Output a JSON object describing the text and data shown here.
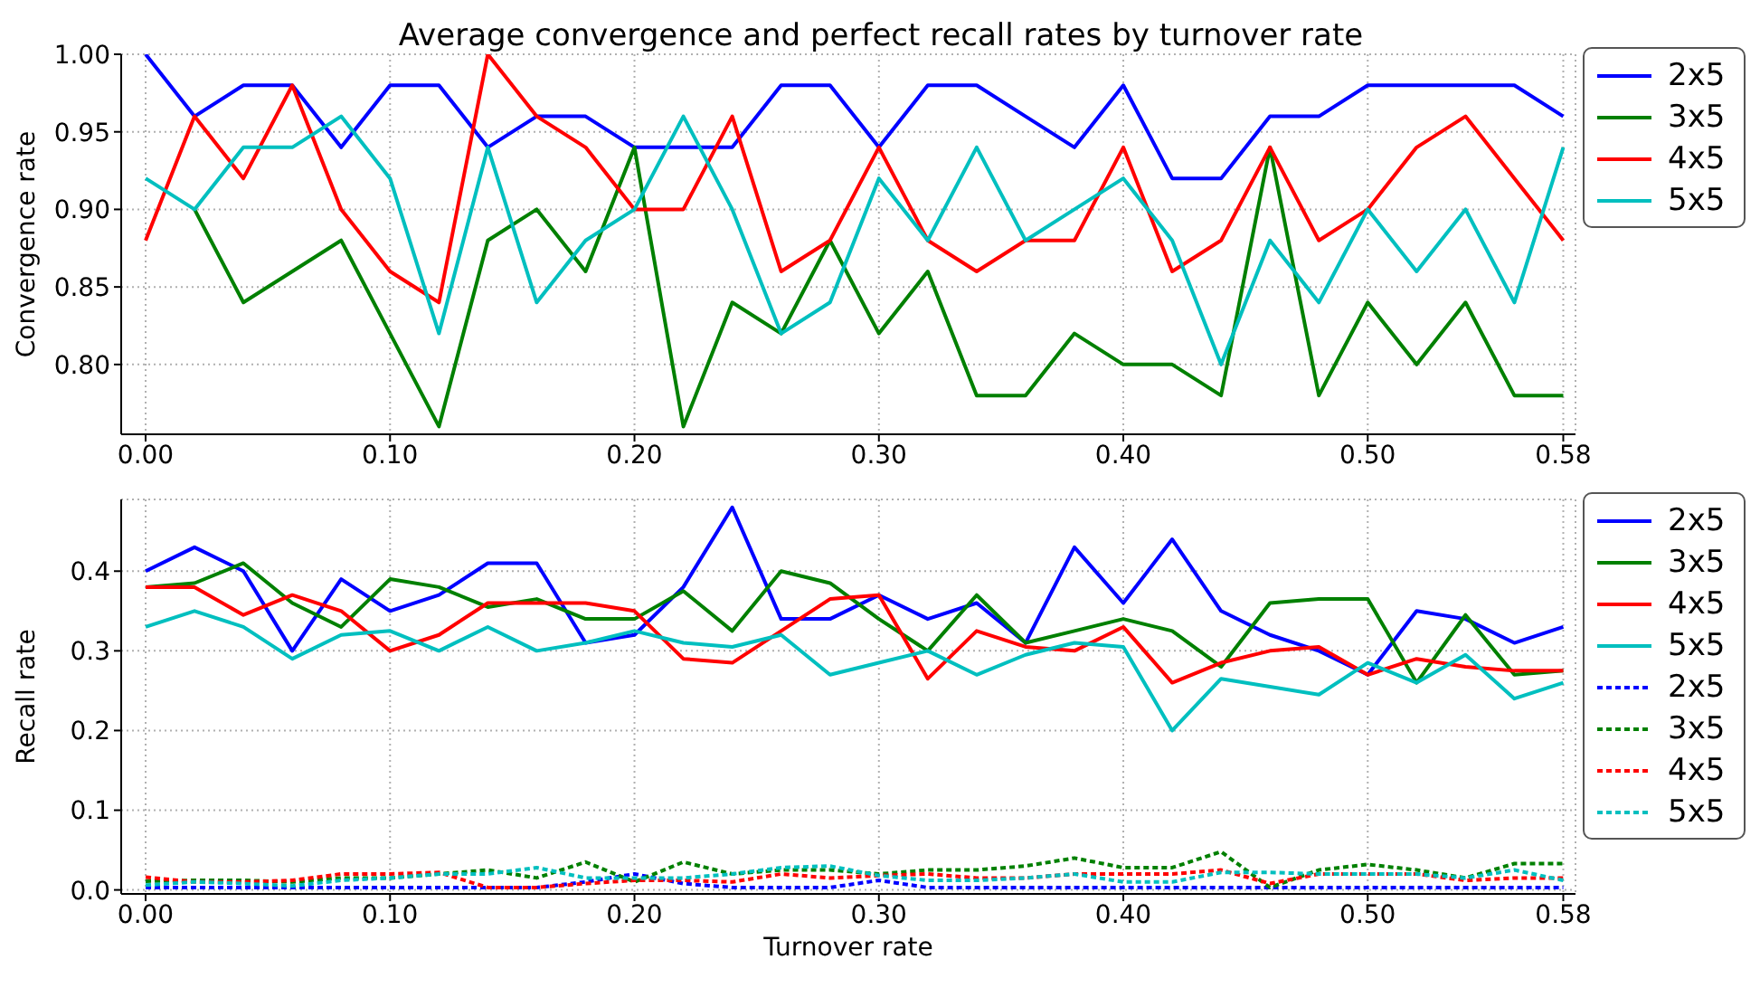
{
  "chart_data": [
    {
      "type": "line",
      "title": "Average convergence and perfect recall rates by turnover rate",
      "ylabel": "Convergence rate",
      "x": [
        0,
        0.02,
        0.04,
        0.06,
        0.08,
        0.1,
        0.12,
        0.14,
        0.16,
        0.18,
        0.2,
        0.22,
        0.24,
        0.26,
        0.28,
        0.3,
        0.32,
        0.34,
        0.36,
        0.38,
        0.4,
        0.42,
        0.44,
        0.46,
        0.48,
        0.5,
        0.52,
        0.54,
        0.56,
        0.58
      ],
      "xlim": [
        -0.01,
        0.585
      ],
      "xticks": [
        {
          "value": 0,
          "label": "0.00"
        },
        {
          "value": 0.1,
          "label": "0.10"
        },
        {
          "value": 0.2,
          "label": "0.20"
        },
        {
          "value": 0.3,
          "label": "0.30"
        },
        {
          "value": 0.4,
          "label": "0.40"
        },
        {
          "value": 0.5,
          "label": "0.50"
        },
        {
          "value": 0.58,
          "label": "0.58"
        }
      ],
      "ylim": [
        0.755,
        1.0
      ],
      "yticks": [
        {
          "value": 0.8,
          "label": "0.80"
        },
        {
          "value": 0.85,
          "label": "0.85"
        },
        {
          "value": 0.9,
          "label": "0.90"
        },
        {
          "value": 0.95,
          "label": "0.95"
        },
        {
          "value": 1.0,
          "label": "1.00"
        }
      ],
      "grid": true,
      "legend": "right",
      "marker": "none",
      "line_style": "solid",
      "series": [
        {
          "name": "2x5",
          "color": "#0000ff",
          "values": [
            1.0,
            0.96,
            0.98,
            0.98,
            0.94,
            0.98,
            0.98,
            0.94,
            0.96,
            0.96,
            0.94,
            0.94,
            0.94,
            0.98,
            0.98,
            0.94,
            0.98,
            0.98,
            0.96,
            0.94,
            0.98,
            0.92,
            0.92,
            0.96,
            0.96,
            0.98,
            0.98,
            0.98,
            0.98,
            0.96
          ]
        },
        {
          "name": "3x5",
          "color": "#008000",
          "values": [
            null,
            0.9,
            0.84,
            0.86,
            0.88,
            0.82,
            0.76,
            0.88,
            0.9,
            0.86,
            0.94,
            0.76,
            0.84,
            0.82,
            0.88,
            0.82,
            0.86,
            0.78,
            0.78,
            0.82,
            0.8,
            0.8,
            0.78,
            0.94,
            0.78,
            0.84,
            0.8,
            0.84,
            0.78,
            0.78
          ]
        },
        {
          "name": "4x5",
          "color": "#ff0000",
          "values": [
            0.88,
            0.96,
            0.92,
            0.98,
            0.9,
            0.86,
            0.84,
            1.0,
            0.96,
            0.94,
            0.9,
            0.9,
            0.96,
            0.86,
            0.88,
            0.94,
            0.88,
            0.86,
            0.88,
            0.88,
            0.94,
            0.86,
            0.88,
            0.94,
            0.88,
            0.9,
            0.94,
            0.96,
            0.92,
            0.88
          ]
        },
        {
          "name": "5x5",
          "color": "#00bfbf",
          "values": [
            0.92,
            0.9,
            0.94,
            0.94,
            0.96,
            0.92,
            0.82,
            0.94,
            0.84,
            0.88,
            0.9,
            0.96,
            0.9,
            0.82,
            0.84,
            0.92,
            0.88,
            0.94,
            0.88,
            0.9,
            0.92,
            0.88,
            0.8,
            0.88,
            0.84,
            0.9,
            0.86,
            0.9,
            0.84,
            0.94
          ]
        }
      ]
    },
    {
      "type": "line",
      "xlabel": "Turnover rate",
      "ylabel": "Recall rate",
      "x": [
        0,
        0.02,
        0.04,
        0.06,
        0.08,
        0.1,
        0.12,
        0.14,
        0.16,
        0.18,
        0.2,
        0.22,
        0.24,
        0.26,
        0.28,
        0.3,
        0.32,
        0.34,
        0.36,
        0.38,
        0.4,
        0.42,
        0.44,
        0.46,
        0.48,
        0.5,
        0.52,
        0.54,
        0.56,
        0.58
      ],
      "xlim": [
        -0.01,
        0.585
      ],
      "xticks": [
        {
          "value": 0,
          "label": "0.00"
        },
        {
          "value": 0.1,
          "label": "0.10"
        },
        {
          "value": 0.2,
          "label": "0.20"
        },
        {
          "value": 0.3,
          "label": "0.30"
        },
        {
          "value": 0.4,
          "label": "0.40"
        },
        {
          "value": 0.5,
          "label": "0.50"
        },
        {
          "value": 0.58,
          "label": "0.58"
        }
      ],
      "ylim": [
        -0.005,
        0.49
      ],
      "yticks": [
        {
          "value": 0,
          "label": "0.0"
        },
        {
          "value": 0.1,
          "label": "0.1"
        },
        {
          "value": 0.2,
          "label": "0.2"
        },
        {
          "value": 0.3,
          "label": "0.3"
        },
        {
          "value": 0.4,
          "label": "0.4"
        }
      ],
      "grid": true,
      "legend": "right",
      "marker": "none",
      "series": [
        {
          "name": "2x5",
          "color": "#0000ff",
          "line_style": "solid",
          "values": [
            0.4,
            0.43,
            0.4,
            0.3,
            0.39,
            0.35,
            0.37,
            0.41,
            0.41,
            0.31,
            0.32,
            0.38,
            0.48,
            0.34,
            0.34,
            0.37,
            0.34,
            0.36,
            0.31,
            0.43,
            0.36,
            0.44,
            0.35,
            0.32,
            0.3,
            0.27,
            0.35,
            0.34,
            0.31,
            0.33
          ]
        },
        {
          "name": "3x5",
          "color": "#008000",
          "line_style": "solid",
          "values": [
            0.38,
            0.385,
            0.41,
            0.36,
            0.33,
            0.39,
            0.38,
            0.355,
            0.365,
            0.34,
            0.34,
            0.375,
            0.325,
            0.4,
            0.385,
            0.34,
            0.3,
            0.37,
            0.31,
            0.325,
            0.34,
            0.325,
            0.28,
            0.36,
            0.365,
            0.365,
            0.26,
            0.345,
            0.27,
            0.275
          ]
        },
        {
          "name": "4x5",
          "color": "#ff0000",
          "line_style": "solid",
          "values": [
            0.38,
            0.38,
            0.345,
            0.37,
            0.35,
            0.3,
            0.32,
            0.36,
            0.36,
            0.36,
            0.35,
            0.29,
            0.285,
            0.325,
            0.365,
            0.37,
            0.265,
            0.325,
            0.305,
            0.3,
            0.33,
            0.26,
            0.285,
            0.3,
            0.305,
            0.27,
            0.29,
            0.28,
            0.275,
            0.275
          ]
        },
        {
          "name": "5x5",
          "color": "#00bfbf",
          "line_style": "solid",
          "values": [
            0.33,
            0.35,
            0.33,
            0.29,
            0.32,
            0.325,
            0.3,
            0.33,
            0.3,
            0.31,
            0.325,
            0.31,
            0.305,
            0.32,
            0.27,
            0.285,
            0.3,
            0.27,
            0.295,
            0.31,
            0.305,
            0.2,
            0.265,
            0.255,
            0.245,
            0.285,
            0.26,
            0.295,
            0.24,
            0.26
          ]
        },
        {
          "name": "2x5",
          "color": "#0000ff",
          "line_style": "dashed",
          "values": [
            0.003,
            0.003,
            0.003,
            0.003,
            0.003,
            0.003,
            0.003,
            0.003,
            0.003,
            0.01,
            0.02,
            0.008,
            0.003,
            0.003,
            0.003,
            0.012,
            0.003,
            0.003,
            0.003,
            0.003,
            0.003,
            0.003,
            0.003,
            0.003,
            0.003,
            0.003,
            0.003,
            0.003,
            0.003,
            0.003
          ]
        },
        {
          "name": "3x5",
          "color": "#008000",
          "line_style": "dashed",
          "values": [
            0.011,
            0.012,
            0.012,
            0.01,
            0.015,
            0.015,
            0.02,
            0.025,
            0.015,
            0.035,
            0.01,
            0.035,
            0.02,
            0.025,
            0.025,
            0.02,
            0.025,
            0.025,
            0.03,
            0.04,
            0.028,
            0.028,
            0.048,
            0.003,
            0.025,
            0.032,
            0.025,
            0.015,
            0.033,
            0.033
          ]
        },
        {
          "name": "4x5",
          "color": "#ff0000",
          "line_style": "dashed",
          "values": [
            0.016,
            0.01,
            0.01,
            0.012,
            0.02,
            0.02,
            0.022,
            0.003,
            0.003,
            0.008,
            0.012,
            0.012,
            0.01,
            0.02,
            0.015,
            0.018,
            0.02,
            0.015,
            0.015,
            0.02,
            0.02,
            0.02,
            0.025,
            0.008,
            0.02,
            0.02,
            0.02,
            0.012,
            0.015,
            0.015
          ]
        },
        {
          "name": "5x5",
          "color": "#00bfbf",
          "line_style": "dashed",
          "values": [
            0.006,
            0.01,
            0.008,
            0.005,
            0.012,
            0.015,
            0.02,
            0.02,
            0.028,
            0.015,
            0.015,
            0.015,
            0.02,
            0.028,
            0.03,
            0.018,
            0.012,
            0.012,
            0.015,
            0.02,
            0.01,
            0.01,
            0.022,
            0.022,
            0.02,
            0.02,
            0.02,
            0.015,
            0.025,
            0.012
          ]
        }
      ]
    }
  ]
}
